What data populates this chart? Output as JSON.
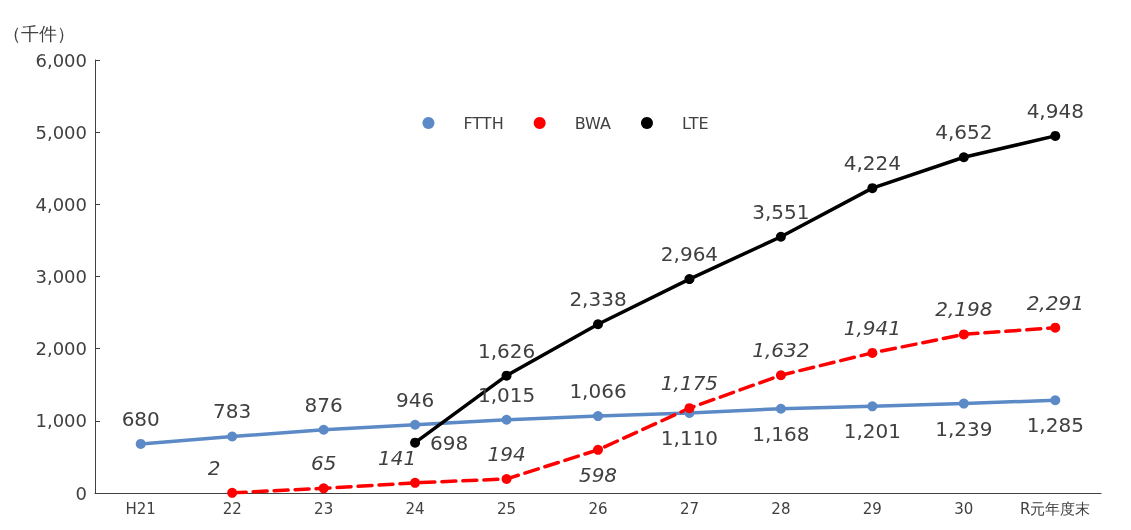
{
  "chart_data": {
    "type": "line",
    "ylabel": "（千件）",
    "categories": [
      "H21",
      "22",
      "23",
      "24",
      "25",
      "26",
      "27",
      "28",
      "29",
      "30",
      "R元年度末"
    ],
    "series": [
      {
        "name": "FTTH",
        "color": "#5b8ac6",
        "line_style": "solid",
        "values": [
          680,
          783,
          876,
          946,
          1015,
          1066,
          1110,
          1168,
          1201,
          1239,
          1285
        ],
        "value_labels": [
          "680",
          "783",
          "876",
          "946",
          "1,015",
          "1,066",
          "1,110",
          "1,168",
          "1,201",
          "1,239",
          "1,285"
        ]
      },
      {
        "name": "BWA",
        "color": "#ff0000",
        "line_style": "dashed",
        "values": [
          null,
          2,
          65,
          141,
          194,
          598,
          1175,
          1632,
          1941,
          2198,
          2291
        ],
        "value_labels": [
          null,
          "2",
          "65",
          "141",
          "194",
          "598",
          "1,175",
          "1,632",
          "1,941",
          "2,198",
          "2,291"
        ]
      },
      {
        "name": "LTE",
        "color": "#000000",
        "line_style": "solid",
        "values": [
          null,
          null,
          null,
          698,
          1626,
          2338,
          2964,
          3551,
          4224,
          4652,
          4948
        ],
        "value_labels": [
          null,
          null,
          null,
          "698",
          "1,626",
          "2,338",
          "2,964",
          "3,551",
          "4,224",
          "4,652",
          "4,948"
        ]
      }
    ],
    "ylim": [
      0,
      6000
    ],
    "yticks": [
      0,
      {
        "value": 1000,
        "label": "1,000"
      },
      {
        "value": 2000,
        "label": "2,000"
      },
      {
        "value": 3000,
        "label": "3,000"
      },
      {
        "value": 4000,
        "label": "4,000"
      },
      {
        "value": 5000,
        "label": "5,000"
      },
      {
        "value": 6000,
        "label": "6,000"
      }
    ],
    "grid": false,
    "legend": "top",
    "marker": "circle"
  }
}
